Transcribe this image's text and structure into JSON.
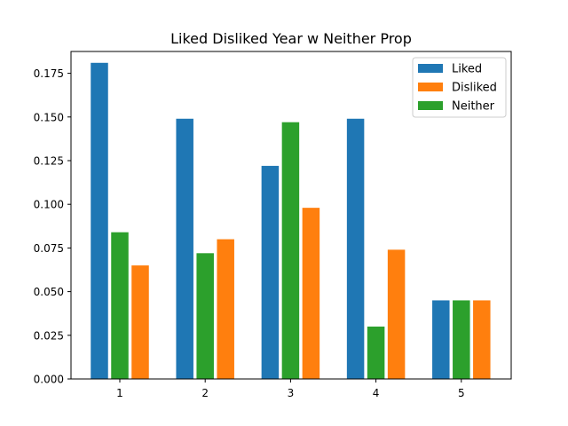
{
  "chart_data": {
    "type": "bar",
    "title": "Liked Disliked Year w Neither Prop",
    "xlabel": "",
    "ylabel": "",
    "categories": [
      "1",
      "2",
      "3",
      "4",
      "5"
    ],
    "ylim": [
      0,
      0.1875
    ],
    "yticks": [
      "0.000",
      "0.025",
      "0.050",
      "0.075",
      "0.100",
      "0.125",
      "0.150",
      "0.175"
    ],
    "series": [
      {
        "name": "Liked",
        "color": "#1f77b4",
        "values": [
          0.181,
          0.149,
          0.122,
          0.149,
          0.045
        ]
      },
      {
        "name": "Neither",
        "color": "#2ca02c",
        "values": [
          0.084,
          0.072,
          0.147,
          0.03,
          0.045
        ]
      },
      {
        "name": "Disliked",
        "color": "#ff7f0e",
        "values": [
          0.065,
          0.08,
          0.098,
          0.074,
          0.045
        ]
      }
    ],
    "legend_order": [
      "Liked",
      "Disliked",
      "Neither"
    ],
    "legend_position": "top-right",
    "grid": false
  }
}
